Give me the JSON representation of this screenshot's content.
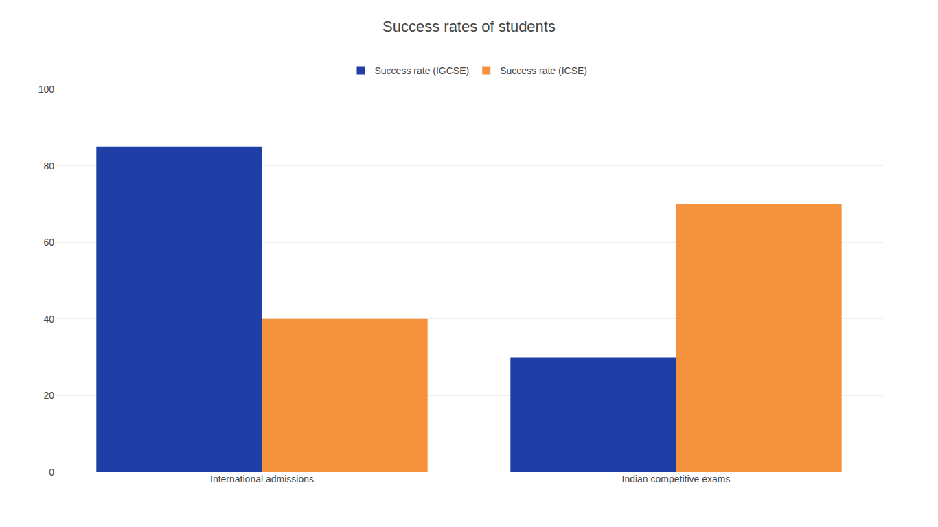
{
  "chart_data": {
    "type": "bar",
    "title": "Success rates of students",
    "categories": [
      "International admissions",
      "Indian competitive exams"
    ],
    "series": [
      {
        "name": "Success rate (IGCSE)",
        "color": "#1f3ea6",
        "values": [
          85,
          30
        ]
      },
      {
        "name": "Success rate (ICSE)",
        "color": "#f5923e",
        "values": [
          40,
          70
        ]
      }
    ],
    "ylim": [
      0,
      100
    ],
    "yticks": [
      0,
      20,
      40,
      60,
      80,
      100
    ],
    "grid": true,
    "legend": "top"
  }
}
